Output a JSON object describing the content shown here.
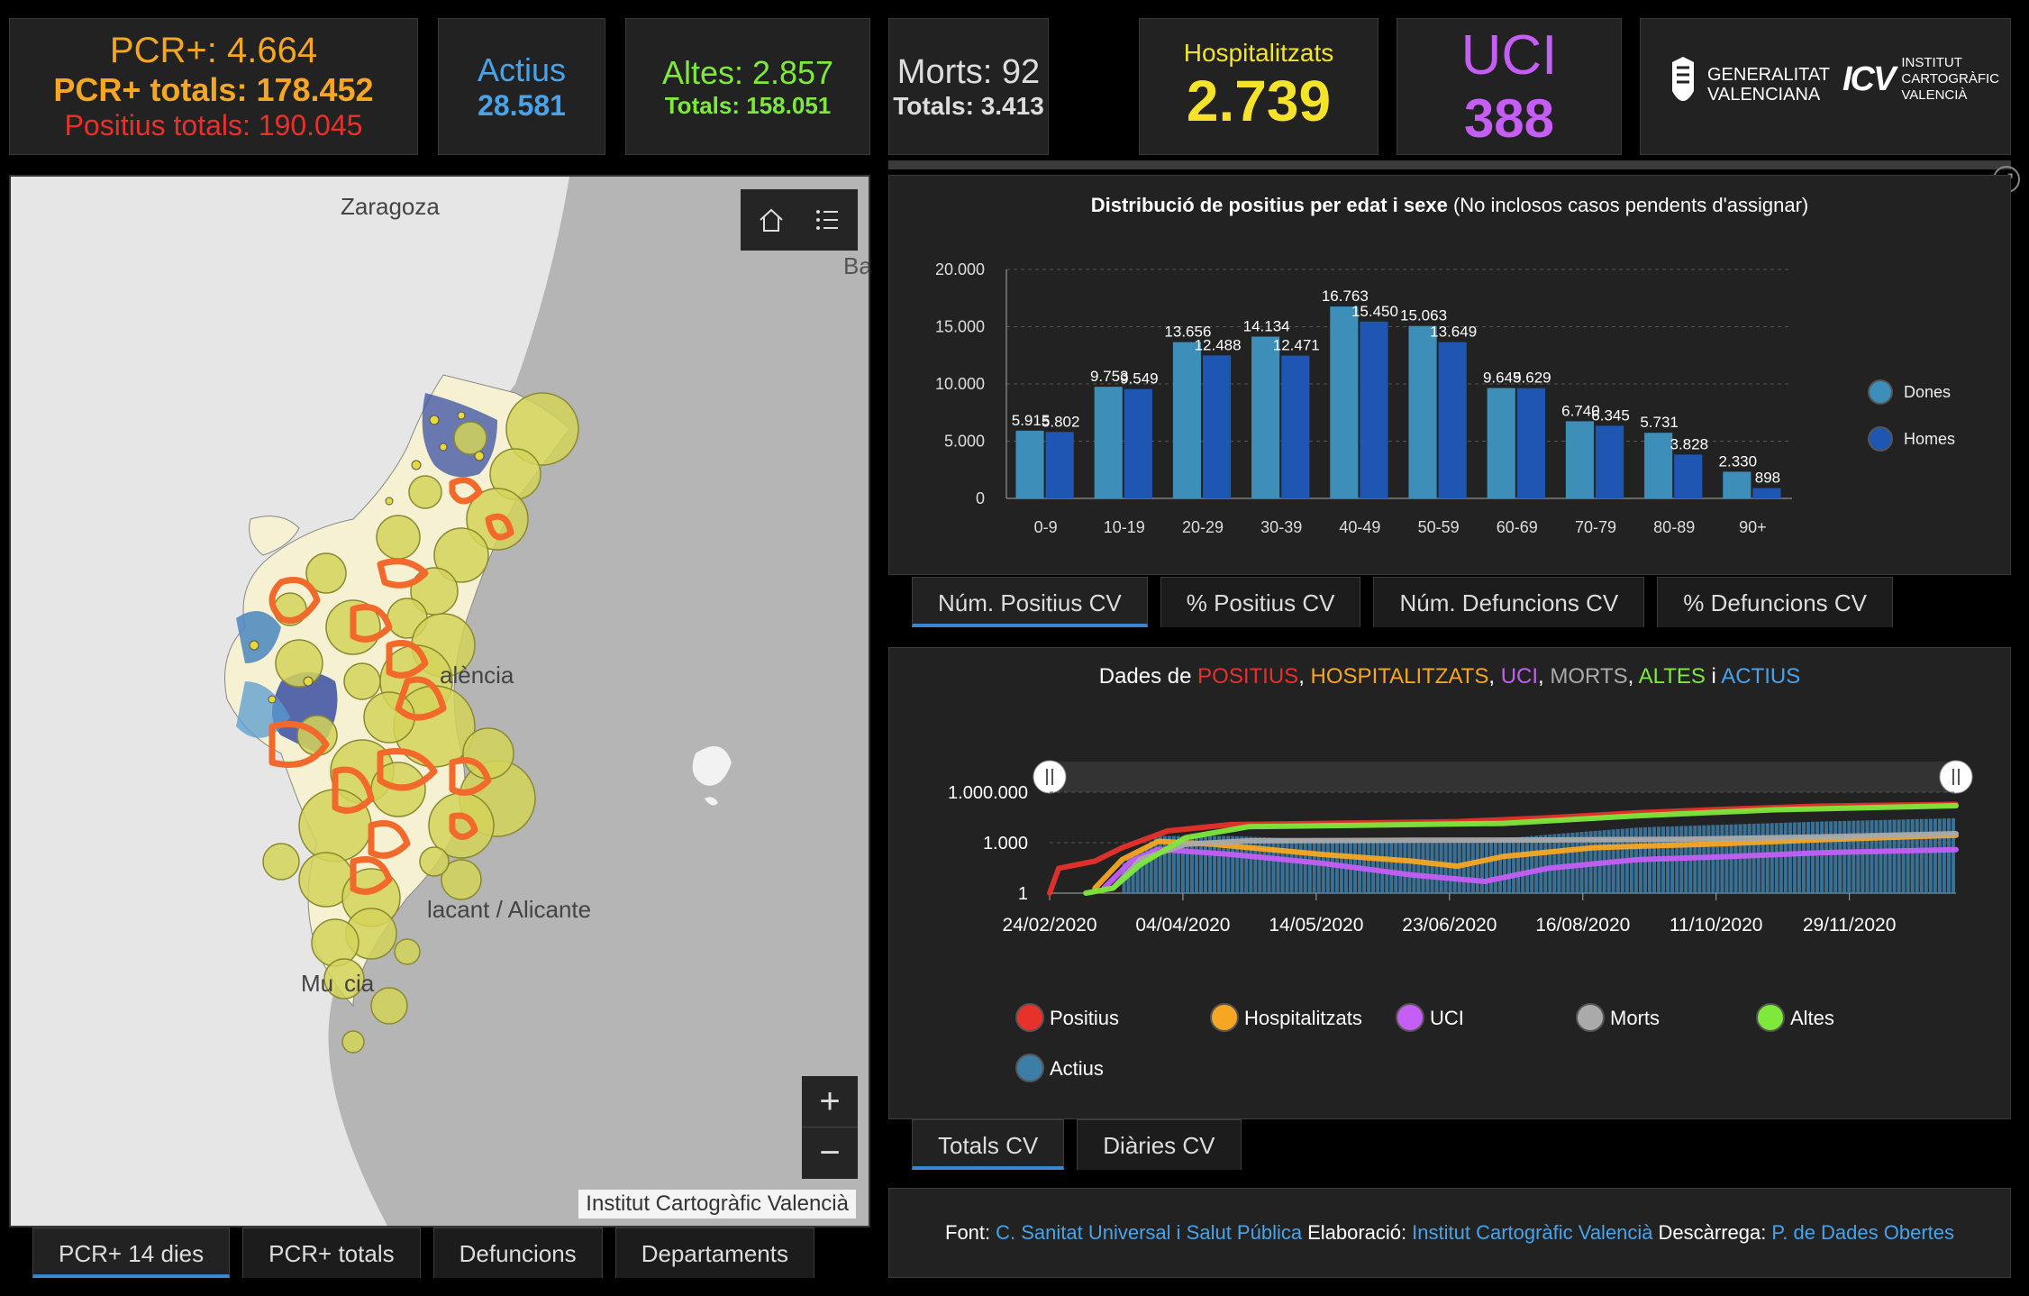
{
  "stats": {
    "pcr": {
      "line1": "PCR+: 4.664",
      "line2": "PCR+ totals: 178.452",
      "line3": "Positius totals: 190.045"
    },
    "actius": {
      "label": "Actius",
      "value": "28.581"
    },
    "altes": {
      "label": "Altes: 2.857",
      "total": "Totals: 158.051"
    },
    "morts": {
      "label": "Morts: 92",
      "total": "Totals: 3.413"
    },
    "hosp": {
      "label": "Hospitalitzats",
      "value": "2.739"
    },
    "uci": {
      "label": "UCI",
      "value": "388"
    }
  },
  "logos": {
    "gva_line1": "GENERALITAT",
    "gva_line2": "VALENCIANA",
    "icv_mark": "ICV",
    "icv_line1": "INSTITUT",
    "icv_line2": "CARTOGRÀFIC",
    "icv_line3": "VALENCIÀ"
  },
  "map": {
    "labels": {
      "zaragoza": "Zaragoza",
      "ba": "Ba",
      "valencia": "alència",
      "alicante": "lacant / Alicante",
      "murcia": "Mu",
      "murcia2": "cia"
    },
    "attribution": "Institut Cartogràfic Valencià",
    "zoom_in": "+",
    "zoom_out": "−",
    "tabs": [
      "PCR+ 14 dies",
      "PCR+ totals",
      "Defuncions",
      "Departaments"
    ]
  },
  "bar_panel": {
    "title_bold": "Distribució de positius per edat i sexe",
    "title_normal": "(No inclosos casos pendents d'assignar)",
    "tabs": [
      "Núm. Positius CV",
      "% Positius CV",
      "Núm. Defuncions CV",
      "% Defuncions CV"
    ]
  },
  "line_panel": {
    "title_prefix": "Dades de",
    "title_parts": [
      {
        "text": "POSITIUS",
        "color": "#e8312b"
      },
      {
        "text": ", ",
        "color": "#ffffff"
      },
      {
        "text": "HOSPITALITZATS",
        "color": "#f5a623"
      },
      {
        "text": ", ",
        "color": "#ffffff"
      },
      {
        "text": "UCI",
        "color": "#c45ef5"
      },
      {
        "text": ", ",
        "color": "#ffffff"
      },
      {
        "text": "MORTS",
        "color": "#aaaaaa"
      },
      {
        "text": ", ",
        "color": "#ffffff"
      },
      {
        "text": "ALTES",
        "color": "#7ee83b"
      },
      {
        "text": " i ",
        "color": "#ffffff"
      },
      {
        "text": "ACTIUS",
        "color": "#4aa3e8"
      }
    ],
    "tabs": [
      "Totals CV",
      "Diàries CV"
    ]
  },
  "footer": {
    "font_label": "Font:",
    "font_link": "C. Sanitat Universal i Salut Pública",
    "elab_label": "Elaboració:",
    "elab_link": "Institut Cartogràfic Valencià",
    "desc_label": "Descàrrega:",
    "desc_link": "P. de Dades Obertes"
  },
  "chart_data": [
    {
      "type": "bar",
      "categories": [
        "0-9",
        "10-19",
        "20-29",
        "30-39",
        "40-49",
        "50-59",
        "60-69",
        "70-79",
        "80-89",
        "90+"
      ],
      "series": [
        {
          "name": "Dones",
          "color": "#3d8eb9",
          "values": [
            5915,
            9753,
            13656,
            14134,
            16763,
            15063,
            9645,
            6740,
            5731,
            2330
          ]
        },
        {
          "name": "Homes",
          "color": "#1f56b4",
          "values": [
            5802,
            9549,
            12488,
            12471,
            15450,
            13649,
            9629,
            6345,
            3828,
            898
          ]
        }
      ],
      "value_labels": {
        "Dones": [
          "5.915",
          "9.753",
          "13.656",
          "14.134",
          "16.763",
          "15.063",
          "9.645",
          "6.740",
          "5.731",
          "2.330"
        ],
        "Homes": [
          "5.802",
          "9.549",
          "12.488",
          "12.471",
          "15.450",
          "13.649",
          "9.629",
          "6.345",
          "3.828",
          "898"
        ]
      },
      "ylim": [
        0,
        20000
      ],
      "yticks": [
        0,
        5000,
        10000,
        15000,
        20000
      ],
      "ytick_labels": [
        "0",
        "5.000",
        "10.000",
        "15.000",
        "20.000"
      ],
      "grid": true,
      "legend": "right"
    },
    {
      "type": "line",
      "x_start": "24/02/2020",
      "x_end": "31/12/2020",
      "xtick_labels": [
        "24/02/2020",
        "04/04/2020",
        "14/05/2020",
        "23/06/2020",
        "16/08/2020",
        "11/10/2020",
        "29/11/2020"
      ],
      "yscale": "log",
      "ytick_labels": [
        "1",
        "1.000",
        "1.000.000"
      ],
      "series": [
        {
          "name": "Positius",
          "color": "#e8312b",
          "points": [
            [
              0,
              1
            ],
            [
              0.01,
              30
            ],
            [
              0.05,
              80
            ],
            [
              0.08,
              500
            ],
            [
              0.13,
              5000
            ],
            [
              0.2,
              12000
            ],
            [
              0.3,
              14000
            ],
            [
              0.45,
              18000
            ],
            [
              0.55,
              30000
            ],
            [
              0.65,
              60000
            ],
            [
              0.75,
              100000
            ],
            [
              0.85,
              150000
            ],
            [
              1,
              190000
            ]
          ]
        },
        {
          "name": "Hospitalitzats",
          "color": "#f5a623",
          "points": [
            [
              0.05,
              2
            ],
            [
              0.08,
              100
            ],
            [
              0.12,
              1200
            ],
            [
              0.18,
              800
            ],
            [
              0.3,
              200
            ],
            [
              0.4,
              80
            ],
            [
              0.45,
              40
            ],
            [
              0.5,
              150
            ],
            [
              0.6,
              500
            ],
            [
              0.75,
              900
            ],
            [
              0.85,
              1500
            ],
            [
              1,
              2739
            ]
          ]
        },
        {
          "name": "UCI",
          "color": "#c45ef5",
          "points": [
            [
              0.06,
              2
            ],
            [
              0.09,
              80
            ],
            [
              0.12,
              400
            ],
            [
              0.2,
              200
            ],
            [
              0.3,
              60
            ],
            [
              0.4,
              12
            ],
            [
              0.48,
              5
            ],
            [
              0.55,
              30
            ],
            [
              0.65,
              100
            ],
            [
              0.75,
              150
            ],
            [
              0.85,
              250
            ],
            [
              1,
              388
            ]
          ]
        },
        {
          "name": "Morts",
          "color": "#aaaaaa",
          "points": [
            [
              0.07,
              2
            ],
            [
              0.1,
              100
            ],
            [
              0.15,
              800
            ],
            [
              0.22,
              1300
            ],
            [
              0.4,
              1400
            ],
            [
              0.55,
              1450
            ],
            [
              0.7,
              1600
            ],
            [
              0.85,
              2200
            ],
            [
              1,
              3413
            ]
          ]
        },
        {
          "name": "Altes",
          "color": "#7ee83b",
          "points": [
            [
              0.04,
              1
            ],
            [
              0.07,
              2
            ],
            [
              0.1,
              50
            ],
            [
              0.15,
              2000
            ],
            [
              0.22,
              9000
            ],
            [
              0.35,
              11000
            ],
            [
              0.5,
              14000
            ],
            [
              0.65,
              40000
            ],
            [
              0.8,
              90000
            ],
            [
              1,
              158051
            ]
          ]
        },
        {
          "name": "Actius",
          "color": "#3d7ea8",
          "points": [
            [
              0.08,
              50
            ],
            [
              0.12,
              2500
            ],
            [
              0.2,
              2500
            ],
            [
              0.35,
              1200
            ],
            [
              0.45,
              1000
            ],
            [
              0.55,
              3000
            ],
            [
              0.65,
              8000
            ],
            [
              0.75,
              12000
            ],
            [
              0.85,
              18000
            ],
            [
              1,
              28581
            ]
          ]
        }
      ],
      "legend": "bottom"
    }
  ]
}
